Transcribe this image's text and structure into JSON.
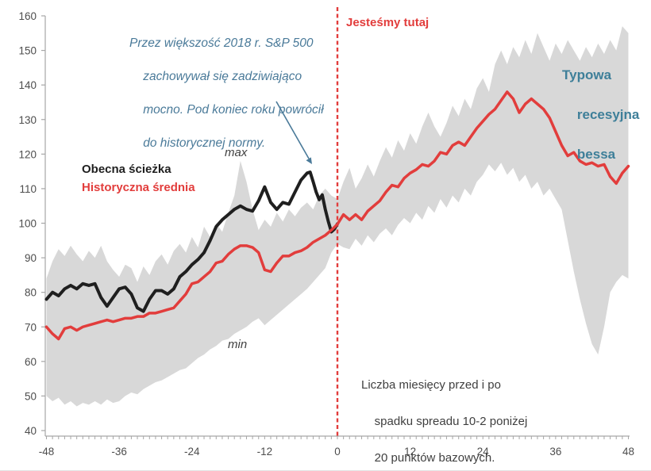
{
  "colors": {
    "red_line": "#e23d3c",
    "black_line": "#1f1f1f",
    "band_gray": "#d8d8d8",
    "dashed_line": "#e23d3c",
    "teal_text": "#3e7f99",
    "blue_annotation": "#4a7a99",
    "axis_line": "#a6a6a6",
    "tick_label": "#4d4d4d"
  },
  "labels": {
    "we_are_here": "Jesteśmy tutaj",
    "legend_current": "Obecna ścieżka",
    "legend_average": "Historyczna średnia",
    "max": "max",
    "min": "min",
    "annotation_lines": [
      "Przez większość 2018 r. S&P 500",
      "zachowywał się zadziwiająco",
      "mocno. Pod koniec roku powrócił",
      "do historycznej normy."
    ],
    "bessa_lines": [
      "Typowa",
      "recesyjna",
      "bessa"
    ],
    "note_lines": [
      "Liczba miesięcy przed i po",
      "spadku spreadu 10-2 poniżej",
      "20 punktów bazowych."
    ]
  },
  "chart_data": {
    "type": "line",
    "title": "",
    "xlabel": "Liczba miesięcy przed i po spadku spreadu 10-2 poniżej 20 punktów bazowych",
    "ylabel": "",
    "xlim": [
      -48,
      48
    ],
    "ylim": [
      40,
      160
    ],
    "x_ticks": [
      -48,
      -36,
      -24,
      -12,
      0,
      12,
      24,
      36,
      48
    ],
    "y_ticks": [
      40,
      50,
      60,
      70,
      80,
      90,
      100,
      110,
      120,
      130,
      140,
      150,
      160
    ],
    "grid": false,
    "event_line_x": 0,
    "months": [
      -48,
      -47,
      -46,
      -45,
      -44,
      -43,
      -42,
      -41,
      -40,
      -39,
      -38,
      -37,
      -36,
      -35,
      -34,
      -33,
      -32,
      -31,
      -30,
      -29,
      -28,
      -27,
      -26,
      -25,
      -24,
      -23,
      -22,
      -21,
      -20,
      -19,
      -18,
      -17,
      -16,
      -15,
      -14,
      -13,
      -12,
      -11,
      -10,
      -9,
      -8,
      -7,
      -6,
      -5,
      -4,
      -3,
      -2,
      -1,
      0,
      1,
      2,
      3,
      4,
      5,
      6,
      7,
      8,
      9,
      10,
      11,
      12,
      13,
      14,
      15,
      16,
      17,
      18,
      19,
      20,
      21,
      22,
      23,
      24,
      25,
      26,
      27,
      28,
      29,
      30,
      31,
      32,
      33,
      34,
      35,
      36,
      37,
      38,
      39,
      40,
      41,
      42,
      43,
      44,
      45,
      46,
      47,
      48
    ],
    "band": {
      "name_max": "max",
      "name_min": "min",
      "max": [
        84,
        89,
        92.5,
        90.5,
        93.5,
        91,
        89,
        92,
        90,
        93.5,
        89,
        86.5,
        84.5,
        88,
        87,
        83,
        87.5,
        85,
        89,
        91,
        88,
        92,
        94,
        91.5,
        96,
        93,
        99,
        96,
        100,
        97.5,
        103,
        108,
        118,
        112,
        104,
        98,
        101,
        99,
        103,
        100.5,
        104,
        102,
        104.5,
        106,
        104,
        108,
        110,
        108,
        107,
        112,
        116,
        110,
        113,
        117,
        113.5,
        118,
        122,
        119,
        124,
        121,
        126,
        123,
        128,
        132,
        128,
        125,
        129,
        134,
        131,
        136,
        133,
        139,
        142,
        138,
        146,
        150,
        146,
        151,
        148,
        153,
        149,
        155,
        151,
        147,
        152,
        149,
        153,
        150,
        147,
        151,
        148,
        152,
        149,
        153,
        150,
        157,
        155
      ],
      "min": [
        50,
        48.5,
        49.5,
        47.5,
        48.5,
        47,
        48,
        47.5,
        48.5,
        47.5,
        49,
        48,
        48.5,
        50,
        51,
        50.5,
        52,
        53,
        54,
        54.5,
        55.5,
        56.5,
        57.5,
        58,
        59.5,
        61,
        62,
        63.5,
        64.5,
        66,
        66.5,
        68,
        69,
        70,
        71.5,
        72.5,
        70.5,
        72,
        73.5,
        75,
        76.5,
        78,
        79.5,
        81,
        83,
        85,
        87,
        91.5,
        94,
        93,
        92.5,
        95.5,
        93.5,
        96.5,
        94.5,
        97,
        98.5,
        96.5,
        99.5,
        101.5,
        100,
        103,
        101,
        105,
        103,
        107,
        104.5,
        108,
        106,
        110,
        108,
        112,
        114,
        117,
        115,
        117.5,
        114,
        116,
        112,
        114,
        110,
        112,
        108,
        110,
        107,
        104,
        95,
        86,
        78,
        71,
        65,
        62,
        70,
        80,
        83,
        85,
        84
      ]
    },
    "series": [
      {
        "name": "Historyczna średnia",
        "color": "#e23d3c",
        "values": [
          70,
          68,
          66.5,
          69.5,
          70,
          69,
          70,
          70.5,
          71,
          71.5,
          72,
          71.5,
          72,
          72.5,
          72.5,
          73,
          73,
          74,
          74,
          74.5,
          75,
          75.5,
          77.5,
          79.5,
          82.5,
          83,
          84.5,
          86,
          88.5,
          89,
          91,
          92.5,
          93.5,
          93.5,
          93,
          91.5,
          86.5,
          86,
          88.5,
          90.5,
          90.5,
          91.5,
          92,
          93,
          94.5,
          95.5,
          96.5,
          98,
          99.7,
          102.5,
          101,
          102.5,
          101,
          103.5,
          105,
          106.5,
          109,
          111,
          110.5,
          113,
          114.5,
          115.5,
          117,
          116.5,
          118,
          120.5,
          120,
          122.5,
          123.5,
          122.5,
          125,
          127.5,
          129.5,
          131.5,
          133,
          135.5,
          138,
          136,
          132,
          134.5,
          136,
          134.5,
          133,
          130.5,
          126.5,
          122.5,
          119.5,
          120.5,
          118,
          117,
          117.5,
          116.5,
          117,
          113.5,
          111.5,
          114.5,
          116.5
        ]
      },
      {
        "name": "Obecna ścieżka",
        "color": "#1f1f1f",
        "points": [
          [
            -48,
            78
          ],
          [
            -47,
            80
          ],
          [
            -46,
            79
          ],
          [
            -45,
            81
          ],
          [
            -44,
            82
          ],
          [
            -43,
            81
          ],
          [
            -42,
            82.5
          ],
          [
            -41,
            82
          ],
          [
            -40,
            82.5
          ],
          [
            -39,
            78.5
          ],
          [
            -38,
            76
          ],
          [
            -37,
            78.5
          ],
          [
            -36,
            81
          ],
          [
            -35,
            81.5
          ],
          [
            -34,
            79.5
          ],
          [
            -33,
            75.5
          ],
          [
            -32,
            74.5
          ],
          [
            -31,
            78
          ],
          [
            -30,
            80.5
          ],
          [
            -29,
            80.5
          ],
          [
            -28,
            79.5
          ],
          [
            -27,
            81
          ],
          [
            -26,
            84.5
          ],
          [
            -25,
            86
          ],
          [
            -24,
            88
          ],
          [
            -23,
            89.5
          ],
          [
            -22,
            91.5
          ],
          [
            -21,
            95
          ],
          [
            -20,
            99
          ],
          [
            -19,
            101
          ],
          [
            -18,
            102.5
          ],
          [
            -17,
            104
          ],
          [
            -16,
            105
          ],
          [
            -15,
            104
          ],
          [
            -14,
            103.5
          ],
          [
            -13,
            106.5
          ],
          [
            -12,
            110.5
          ],
          [
            -11,
            106
          ],
          [
            -10,
            104
          ],
          [
            -9,
            106
          ],
          [
            -8,
            105.5
          ],
          [
            -7,
            109
          ],
          [
            -6,
            112.5
          ],
          [
            -5.5,
            113.5
          ],
          [
            -5,
            114.5
          ],
          [
            -4.5,
            114.8
          ],
          [
            -4,
            112
          ],
          [
            -3.5,
            109
          ],
          [
            -3,
            106.8
          ],
          [
            -2.5,
            108.2
          ],
          [
            -2,
            104
          ],
          [
            -1.5,
            100.5
          ],
          [
            -1,
            97.5
          ],
          [
            -0.5,
            98.3
          ],
          [
            0,
            99.8
          ]
        ]
      }
    ]
  }
}
